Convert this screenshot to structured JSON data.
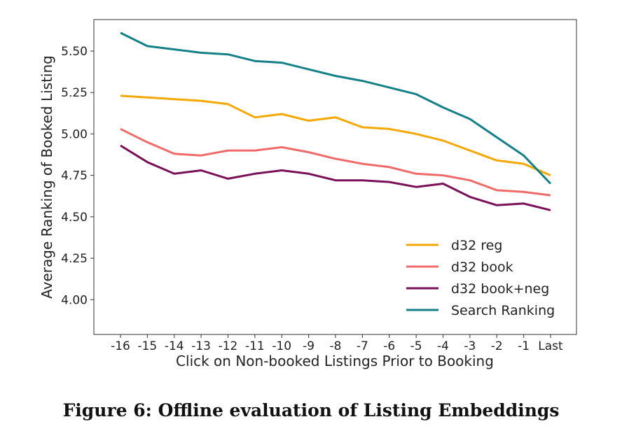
{
  "caption": "Figure 6: Offline evaluation of Listing Embeddings",
  "chart_data": {
    "type": "line",
    "title": "",
    "xlabel": "Click on Non-booked Listings Prior to Booking",
    "ylabel": "Average Ranking of Booked Listing",
    "categories": [
      "-16",
      "-15",
      "-14",
      "-13",
      "-12",
      "-11",
      "-10",
      "-9",
      "-8",
      "-7",
      "-6",
      "-5",
      "-4",
      "-3",
      "-2",
      "-1",
      "Last"
    ],
    "yticks": [
      "4.00",
      "4.25",
      "4.50",
      "4.75",
      "5.00",
      "5.25",
      "5.50"
    ],
    "ylim": [
      3.79,
      5.69
    ],
    "grid": false,
    "legend_position": "bottom-right",
    "series": [
      {
        "name": "d32 reg",
        "color": "#f5a800",
        "values": [
          5.23,
          5.22,
          5.21,
          5.2,
          5.18,
          5.1,
          5.12,
          5.08,
          5.1,
          5.04,
          5.03,
          5.0,
          4.96,
          4.9,
          4.84,
          4.82,
          4.75
        ]
      },
      {
        "name": "d32 book",
        "color": "#f06a6a",
        "values": [
          5.03,
          4.95,
          4.88,
          4.87,
          4.9,
          4.9,
          4.92,
          4.89,
          4.85,
          4.82,
          4.8,
          4.76,
          4.75,
          4.72,
          4.66,
          4.65,
          4.63
        ]
      },
      {
        "name": "d32 book+neg",
        "color": "#7a1058",
        "values": [
          4.93,
          4.83,
          4.76,
          4.78,
          4.73,
          4.76,
          4.78,
          4.76,
          4.72,
          4.72,
          4.71,
          4.68,
          4.7,
          4.62,
          4.57,
          4.58,
          4.54
        ]
      },
      {
        "name": "Search Ranking",
        "color": "#158088",
        "values": [
          5.61,
          5.53,
          5.51,
          5.49,
          5.48,
          5.44,
          5.43,
          5.39,
          5.35,
          5.32,
          5.28,
          5.24,
          5.16,
          5.09,
          4.98,
          4.87,
          4.7
        ]
      }
    ]
  }
}
